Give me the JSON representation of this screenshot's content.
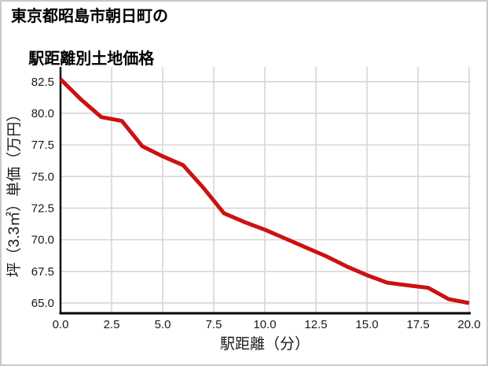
{
  "page": {
    "title_line1": "東京都昭島市朝日町の",
    "title_line2": "駅距離別土地価格"
  },
  "colors": {
    "background": "#ffffff",
    "frame_border": "#c9c9c9",
    "grid": "#d6d6d6",
    "axis": "#000000",
    "tick_text": "#1a1a1a",
    "line": "#cc1111"
  },
  "chart_data": {
    "type": "line",
    "title": "東京都昭島市朝日町の駅距離別土地価格",
    "xlabel": "駅距離（分）",
    "ylabel": "坪（3.3㎡）単価（万円）",
    "x": [
      0,
      1,
      2,
      3,
      4,
      5,
      6,
      7,
      8,
      9,
      10,
      11,
      12,
      13,
      14,
      15,
      16,
      17,
      18,
      19,
      20
    ],
    "values": [
      82.7,
      81.1,
      79.7,
      79.4,
      77.4,
      76.6,
      75.9,
      74.1,
      72.1,
      71.4,
      70.8,
      70.1,
      69.4,
      68.7,
      67.9,
      67.2,
      66.6,
      66.4,
      66.2,
      65.3,
      65.0
    ],
    "x_ticks": [
      0.0,
      2.5,
      5.0,
      7.5,
      10.0,
      12.5,
      15.0,
      17.5,
      20.0
    ],
    "x_tick_labels": [
      "0.0",
      "2.5",
      "5.0",
      "7.5",
      "10.0",
      "12.5",
      "15.0",
      "17.5",
      "20.0"
    ],
    "y_ticks": [
      65.0,
      67.5,
      70.0,
      72.5,
      75.0,
      77.5,
      80.0,
      82.5
    ],
    "y_tick_labels": [
      "65.0",
      "67.5",
      "70.0",
      "72.5",
      "75.0",
      "77.5",
      "80.0",
      "82.5"
    ],
    "xlim": [
      0,
      20
    ],
    "ylim": [
      64.25,
      83.67
    ],
    "grid": true,
    "legend": false
  }
}
